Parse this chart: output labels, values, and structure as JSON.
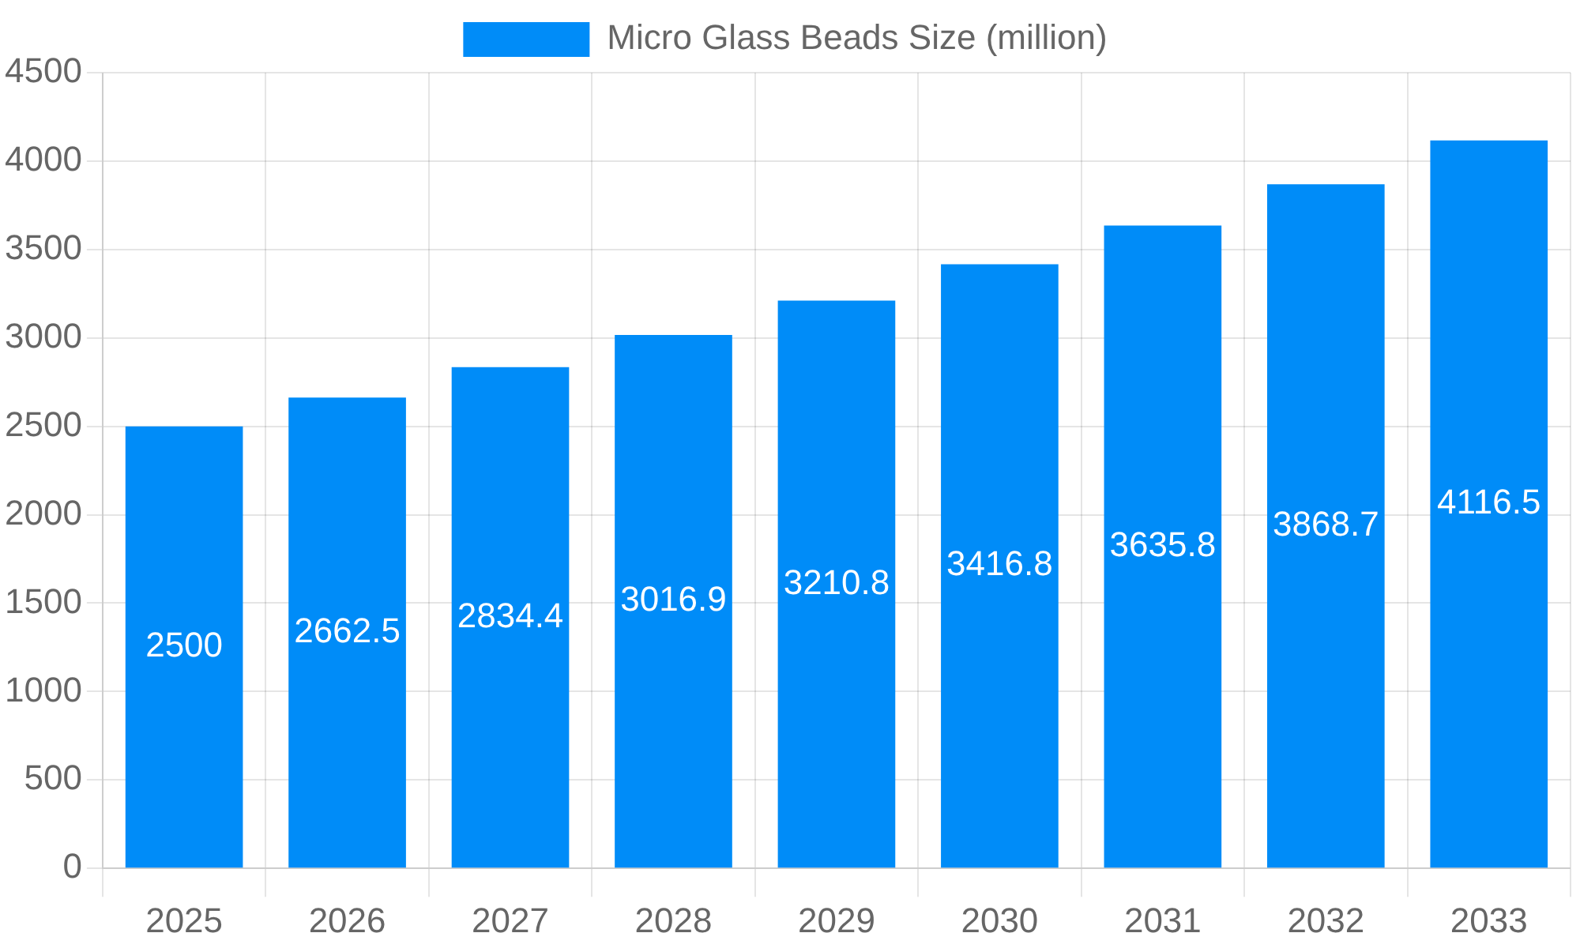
{
  "chart_data": {
    "type": "bar",
    "categories": [
      "2025",
      "2026",
      "2027",
      "2028",
      "2029",
      "2030",
      "2031",
      "2032",
      "2033"
    ],
    "series": [
      {
        "name": "Micro Glass Beads Size (million)",
        "color": "#008cf8",
        "values": [
          2500,
          2662.5,
          2834.4,
          3016.9,
          3210.8,
          3416.8,
          3635.8,
          3868.7,
          4116.5
        ]
      }
    ],
    "ylim": [
      0,
      4500
    ],
    "yticks": [
      0,
      500,
      1000,
      1500,
      2000,
      2500,
      3000,
      3500,
      4000,
      4500
    ],
    "grid": true,
    "legend": "top",
    "data_labels": true
  }
}
